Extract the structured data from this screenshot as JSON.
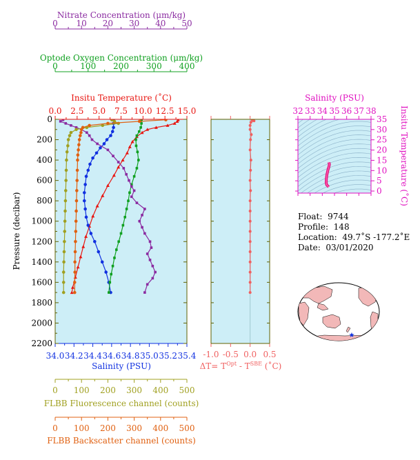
{
  "float_info": {
    "float_label": "Float:",
    "float_value": "9744",
    "profile_label": "Profile:",
    "profile_value": "148",
    "location_label": "Location:",
    "location_value": "49.7˚S  -177.2˚E",
    "date_label": "Date:",
    "date_value": "03/01/2020"
  },
  "colors": {
    "panel_bg": "#cdeef7",
    "temperature": "#e8140f",
    "salinity": "#1030e0",
    "oxygen": "#10a020",
    "nitrate": "#8a2aa0",
    "fluorescence": "#a0a020",
    "backscatter": "#e06010",
    "delta_t": "#f06060",
    "ts_axis": "#e010c0",
    "frame": "#606000"
  },
  "chart_data": [
    {
      "type": "line",
      "name": "main-profile-panel",
      "ylabel": "Pressure (decibar)",
      "ylim": [
        2200,
        0
      ],
      "yticks": [
        "0",
        "200",
        "400",
        "600",
        "800",
        "1000",
        "1200",
        "1400",
        "1600",
        "1800",
        "2000",
        "2200"
      ],
      "grid": false,
      "axes": {
        "nitrate": {
          "label": "Nitrate Concentration (μm/kg)",
          "range": [
            0,
            50
          ],
          "ticks": [
            "0",
            "10",
            "20",
            "30",
            "40",
            "50"
          ]
        },
        "oxygen": {
          "label": "Optode Oxygen Concentration (μm/kg)",
          "range": [
            0,
            400
          ],
          "ticks": [
            "0",
            "100",
            "200",
            "300",
            "400"
          ]
        },
        "temperature": {
          "label": "Insitu Temperature (˚C)",
          "range": [
            0,
            15
          ],
          "ticks": [
            "0.0",
            "2.5",
            "5.0",
            "7.5",
            "10.0",
            "12.5",
            "15.0"
          ]
        },
        "salinity": {
          "label": "Salinity (PSU)",
          "range": [
            34.0,
            35.4
          ],
          "ticks": [
            "34.0",
            "34.2",
            "34.4",
            "34.6",
            "34.8",
            "35.0",
            "35.2",
            "35.4"
          ]
        },
        "fluorescence": {
          "label": "FLBB Fluorescence channel (counts)",
          "range": [
            0,
            500
          ],
          "ticks": [
            "0",
            "100",
            "200",
            "300",
            "400",
            "500"
          ]
        },
        "backscatter": {
          "label": "FLBB Backscatter channel (counts)",
          "range": [
            0,
            500
          ],
          "ticks": [
            "0",
            "100",
            "200",
            "300",
            "400",
            "500"
          ]
        }
      },
      "series": [
        {
          "key": "temperature",
          "axis": "temperature",
          "points": [
            [
              14.0,
              5
            ],
            [
              13.9,
              20
            ],
            [
              13.6,
              40
            ],
            [
              12.8,
              60
            ],
            [
              11.5,
              80
            ],
            [
              10.5,
              100
            ],
            [
              9.9,
              130
            ],
            [
              9.3,
              170
            ],
            [
              8.8,
              220
            ],
            [
              8.5,
              270
            ],
            [
              8.2,
              330
            ],
            [
              7.7,
              400
            ],
            [
              7.2,
              470
            ],
            [
              6.7,
              550
            ],
            [
              6.0,
              650
            ],
            [
              5.4,
              750
            ],
            [
              4.8,
              850
            ],
            [
              4.3,
              950
            ],
            [
              3.9,
              1050
            ],
            [
              3.5,
              1150
            ],
            [
              3.2,
              1250
            ],
            [
              2.9,
              1350
            ],
            [
              2.6,
              1450
            ],
            [
              2.3,
              1550
            ],
            [
              2.0,
              1650
            ],
            [
              1.9,
              1700
            ]
          ]
        },
        {
          "key": "salinity",
          "axis": "salinity",
          "points": [
            [
              34.62,
              5
            ],
            [
              34.62,
              40
            ],
            [
              34.62,
              80
            ],
            [
              34.61,
              120
            ],
            [
              34.59,
              160
            ],
            [
              34.55,
              200
            ],
            [
              34.52,
              240
            ],
            [
              34.48,
              280
            ],
            [
              34.44,
              330
            ],
            [
              34.4,
              380
            ],
            [
              34.37,
              440
            ],
            [
              34.35,
              500
            ],
            [
              34.33,
              560
            ],
            [
              34.32,
              640
            ],
            [
              34.31,
              720
            ],
            [
              34.31,
              800
            ],
            [
              34.32,
              880
            ],
            [
              34.33,
              960
            ],
            [
              34.35,
              1040
            ],
            [
              34.38,
              1120
            ],
            [
              34.42,
              1200
            ],
            [
              34.46,
              1300
            ],
            [
              34.5,
              1400
            ],
            [
              34.54,
              1500
            ],
            [
              34.57,
              1600
            ],
            [
              34.59,
              1700
            ]
          ]
        },
        {
          "key": "oxygen",
          "axis": "oxygen",
          "points": [
            [
              262,
              5
            ],
            [
              262,
              40
            ],
            [
              260,
              80
            ],
            [
              255,
              120
            ],
            [
              248,
              160
            ],
            [
              245,
              200
            ],
            [
              246,
              260
            ],
            [
              250,
              320
            ],
            [
              253,
              400
            ],
            [
              248,
              480
            ],
            [
              240,
              560
            ],
            [
              232,
              640
            ],
            [
              226,
              720
            ],
            [
              222,
              800
            ],
            [
              217,
              880
            ],
            [
              212,
              960
            ],
            [
              206,
              1040
            ],
            [
              200,
              1120
            ],
            [
              193,
              1200
            ],
            [
              186,
              1280
            ],
            [
              180,
              1360
            ],
            [
              175,
              1440
            ],
            [
              170,
              1520
            ],
            [
              166,
              1600
            ],
            [
              163,
              1700
            ]
          ]
        },
        {
          "key": "nitrate",
          "axis": "nitrate",
          "points": [
            [
              3,
              5
            ],
            [
              2,
              20
            ],
            [
              4,
              40
            ],
            [
              6,
              60
            ],
            [
              8,
              80
            ],
            [
              10,
              100
            ],
            [
              12,
              130
            ],
            [
              13,
              160
            ],
            [
              14,
              200
            ],
            [
              16,
              240
            ],
            [
              20,
              300
            ],
            [
              22,
              360
            ],
            [
              24,
              420
            ],
            [
              26,
              480
            ],
            [
              27,
              540
            ],
            [
              28,
              600
            ],
            [
              29,
              660
            ],
            [
              30,
              700
            ],
            [
              29,
              760
            ],
            [
              31,
              820
            ],
            [
              34,
              880
            ],
            [
              33,
              940
            ],
            [
              32,
              1000
            ],
            [
              33,
              1060
            ],
            [
              34,
              1120
            ],
            [
              36,
              1200
            ],
            [
              36.5,
              1260
            ],
            [
              35,
              1320
            ],
            [
              36,
              1380
            ],
            [
              37,
              1440
            ],
            [
              38,
              1500
            ],
            [
              37,
              1560
            ],
            [
              35,
              1620
            ],
            [
              34,
              1700
            ]
          ]
        },
        {
          "key": "fluorescence",
          "axis": "fluorescence",
          "points": [
            [
              215,
              5
            ],
            [
              225,
              20
            ],
            [
              240,
              40
            ],
            [
              180,
              60
            ],
            [
              120,
              80
            ],
            [
              80,
              100
            ],
            [
              60,
              130
            ],
            [
              55,
              160
            ],
            [
              50,
              200
            ],
            [
              48,
              260
            ],
            [
              45,
              320
            ],
            [
              43,
              400
            ],
            [
              42,
              500
            ],
            [
              41,
              600
            ],
            [
              40,
              700
            ],
            [
              39,
              800
            ],
            [
              38,
              900
            ],
            [
              37,
              1000
            ],
            [
              36,
              1100
            ],
            [
              35,
              1200
            ],
            [
              34,
              1300
            ],
            [
              33,
              1400
            ],
            [
              32,
              1500
            ],
            [
              32,
              1600
            ],
            [
              32,
              1700
            ]
          ]
        },
        {
          "key": "backscatter",
          "axis": "backscatter",
          "points": [
            [
              420,
              5
            ],
            [
              320,
              20
            ],
            [
              200,
              40
            ],
            [
              130,
              60
            ],
            [
              105,
              80
            ],
            [
              100,
              100
            ],
            [
              98,
              130
            ],
            [
              95,
              160
            ],
            [
              92,
              200
            ],
            [
              90,
              250
            ],
            [
              88,
              300
            ],
            [
              86,
              350
            ],
            [
              85,
              400
            ],
            [
              84,
              500
            ],
            [
              83,
              600
            ],
            [
              82,
              700
            ],
            [
              81,
              800
            ],
            [
              80,
              900
            ],
            [
              79,
              1000
            ],
            [
              78,
              1100
            ],
            [
              77,
              1200
            ],
            [
              76,
              1300
            ],
            [
              75,
              1400
            ],
            [
              75,
              1500
            ],
            [
              74,
              1600
            ],
            [
              74,
              1700
            ]
          ]
        }
      ]
    },
    {
      "type": "line",
      "name": "delta-t-panel",
      "xlabel": "ΔT= T",
      "xlabel_sup1": "Opt",
      "xlabel_mid": " - T",
      "xlabel_sup2": "SBE",
      "xlabel_end": " (˚C)",
      "xlim": [
        -1.0,
        0.5
      ],
      "xticks": [
        "-1.0",
        "-0.5",
        "0.0",
        "0.5"
      ],
      "ylim": [
        2200,
        0
      ],
      "series": [
        {
          "key": "delta_t",
          "points": [
            [
              0.05,
              5
            ],
            [
              0.1,
              15
            ],
            [
              0.02,
              30
            ],
            [
              0.0,
              60
            ],
            [
              0.0,
              100
            ],
            [
              0.03,
              150
            ],
            [
              0.01,
              200
            ],
            [
              0.0,
              300
            ],
            [
              0.02,
              400
            ],
            [
              0.01,
              500
            ],
            [
              0.0,
              600
            ],
            [
              0.01,
              700
            ],
            [
              0.0,
              800
            ],
            [
              0.0,
              900
            ],
            [
              0.0,
              1000
            ],
            [
              0.0,
              1100
            ],
            [
              0.0,
              1200
            ],
            [
              0.0,
              1300
            ],
            [
              0.0,
              1400
            ],
            [
              0.0,
              1500
            ],
            [
              0.0,
              1600
            ],
            [
              0.0,
              1700
            ]
          ]
        }
      ]
    },
    {
      "type": "line",
      "name": "ts-diagram",
      "xlabel": "Salinity (PSU)",
      "ylabel": "Insitu Temperature (˚C)",
      "xlim": [
        32,
        38
      ],
      "ylim": [
        -1,
        35
      ],
      "xticks": [
        "32",
        "33",
        "34",
        "35",
        "36",
        "37",
        "38"
      ],
      "yticks": [
        "0",
        "5",
        "10",
        "15",
        "20",
        "25",
        "30",
        "35"
      ],
      "series": [
        {
          "key": "ts",
          "points": [
            [
              34.55,
              14
            ],
            [
              34.58,
              13
            ],
            [
              34.55,
              12
            ],
            [
              34.45,
              10
            ],
            [
              34.38,
              8
            ],
            [
              34.33,
              6
            ],
            [
              34.32,
              4
            ],
            [
              34.36,
              3
            ],
            [
              34.45,
              2.5
            ],
            [
              34.52,
              2
            ]
          ]
        }
      ]
    }
  ]
}
